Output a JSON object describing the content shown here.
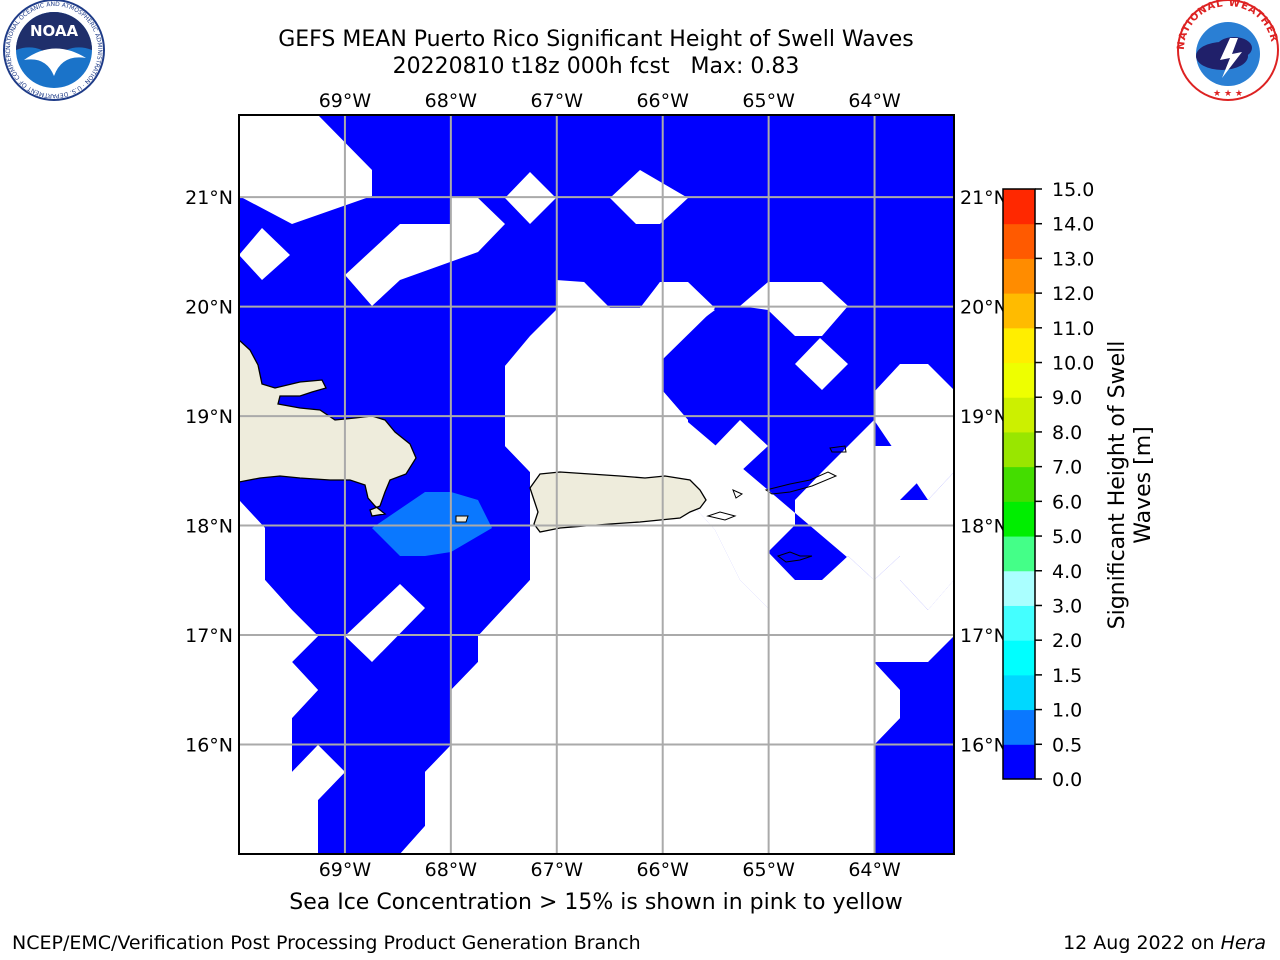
{
  "title": {
    "line1": "GEFS MEAN Puerto Rico Significant Height of Swell Waves",
    "line2": "20220810 t18z 000h fcst   Max: 0.83"
  },
  "map": {
    "lon_ticks": [
      "69°W",
      "68°W",
      "67°W",
      "66°W",
      "65°W",
      "64°W"
    ],
    "lat_ticks": [
      "21°N",
      "20°N",
      "19°N",
      "18°N",
      "17°N",
      "16°N"
    ],
    "lon_range": [
      -70.0,
      -63.25
    ],
    "lat_range": [
      15.0,
      21.75
    ],
    "land_color": "#eeecdc",
    "open_water_color": "#ffffff"
  },
  "colorbar": {
    "label": "Significant Height of Swell Waves [m]",
    "label_line1": "Significant Height of Swell",
    "label_line2": "Waves [m]",
    "levels": [
      "0.0",
      "0.5",
      "1.0",
      "1.5",
      "2.0",
      "3.0",
      "4.0",
      "5.0",
      "6.0",
      "7.0",
      "8.0",
      "9.0",
      "10.0",
      "11.0",
      "12.0",
      "13.0",
      "14.0",
      "15.0"
    ],
    "colors": [
      "#0000ff",
      "#0a78ff",
      "#00d8ff",
      "#00ffff",
      "#44ffff",
      "#aaffff",
      "#44ff88",
      "#00ee00",
      "#44dd00",
      "#99e600",
      "#ccf000",
      "#eeff00",
      "#ffee00",
      "#ffbb00",
      "#ff8c00",
      "#ff5a00",
      "#ff2800"
    ]
  },
  "caption": "Sea Ice Concentration > 15% is shown in pink to yellow",
  "footer": {
    "left": "NCEP/EMC/Verification Post Processing Product Generation Branch",
    "right_prefix": "12 Aug 2022 on ",
    "right_italic": "Hera"
  },
  "logos": {
    "noaa": "NOAA",
    "noaa_ring": "NATIONAL OCEANIC AND ATMOSPHERIC ADMINISTRATION · U.S. DEPARTMENT OF COMMERCE",
    "nws_ring": "NATIONAL WEATHER SERVICE"
  }
}
